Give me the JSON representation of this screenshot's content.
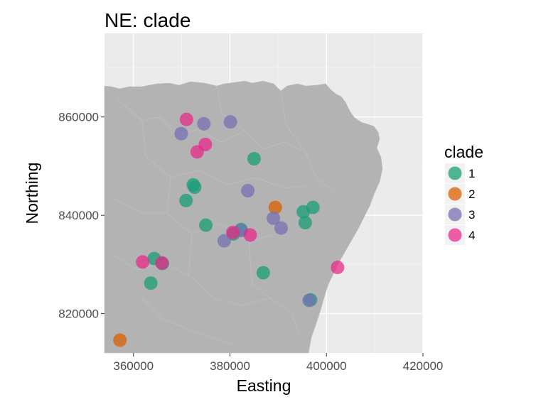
{
  "chart_data": {
    "type": "scatter",
    "title": "NE: clade",
    "xlabel": "Easting",
    "ylabel": "Northing",
    "xlim": [
      354000,
      420000
    ],
    "ylim": [
      812000,
      877000
    ],
    "x_ticks": [
      360000,
      380000,
      400000,
      420000
    ],
    "x_tick_labels": [
      "360000",
      "380000",
      "400000",
      "420000"
    ],
    "y_ticks": [
      820000,
      840000,
      860000
    ],
    "y_tick_labels": [
      "820000",
      "840000",
      "860000"
    ],
    "grid": true,
    "legend": {
      "title": "clade",
      "placement": "right"
    },
    "series": [
      {
        "name": "1",
        "color": "#1b9e77",
        "points": [
          [
            364300,
            831200
          ],
          [
            366000,
            830200
          ],
          [
            363600,
            826200
          ],
          [
            370900,
            843000
          ],
          [
            372400,
            846200
          ],
          [
            372700,
            845700
          ],
          [
            375000,
            838000
          ],
          [
            380700,
            836200
          ],
          [
            382300,
            837100
          ],
          [
            385000,
            851500
          ],
          [
            386900,
            828300
          ],
          [
            395200,
            840700
          ],
          [
            395600,
            838500
          ],
          [
            397200,
            841600
          ],
          [
            396700,
            822800
          ]
        ]
      },
      {
        "name": "2",
        "color": "#d95f02",
        "points": [
          [
            357200,
            814600
          ],
          [
            389400,
            841600
          ]
        ]
      },
      {
        "name": "3",
        "color": "#7570b3",
        "points": [
          [
            369900,
            856600
          ],
          [
            374600,
            858600
          ],
          [
            380100,
            859000
          ],
          [
            383700,
            845000
          ],
          [
            382300,
            836900
          ],
          [
            378800,
            834800
          ],
          [
            389000,
            839400
          ],
          [
            390600,
            837400
          ],
          [
            396400,
            822700
          ]
        ]
      },
      {
        "name": "4",
        "color": "#e7298a",
        "points": [
          [
            371000,
            859500
          ],
          [
            374900,
            854400
          ],
          [
            373200,
            852900
          ],
          [
            380600,
            836500
          ],
          [
            384200,
            836000
          ],
          [
            361900,
            830500
          ],
          [
            365900,
            830300
          ],
          [
            402300,
            829400
          ]
        ]
      }
    ]
  }
}
